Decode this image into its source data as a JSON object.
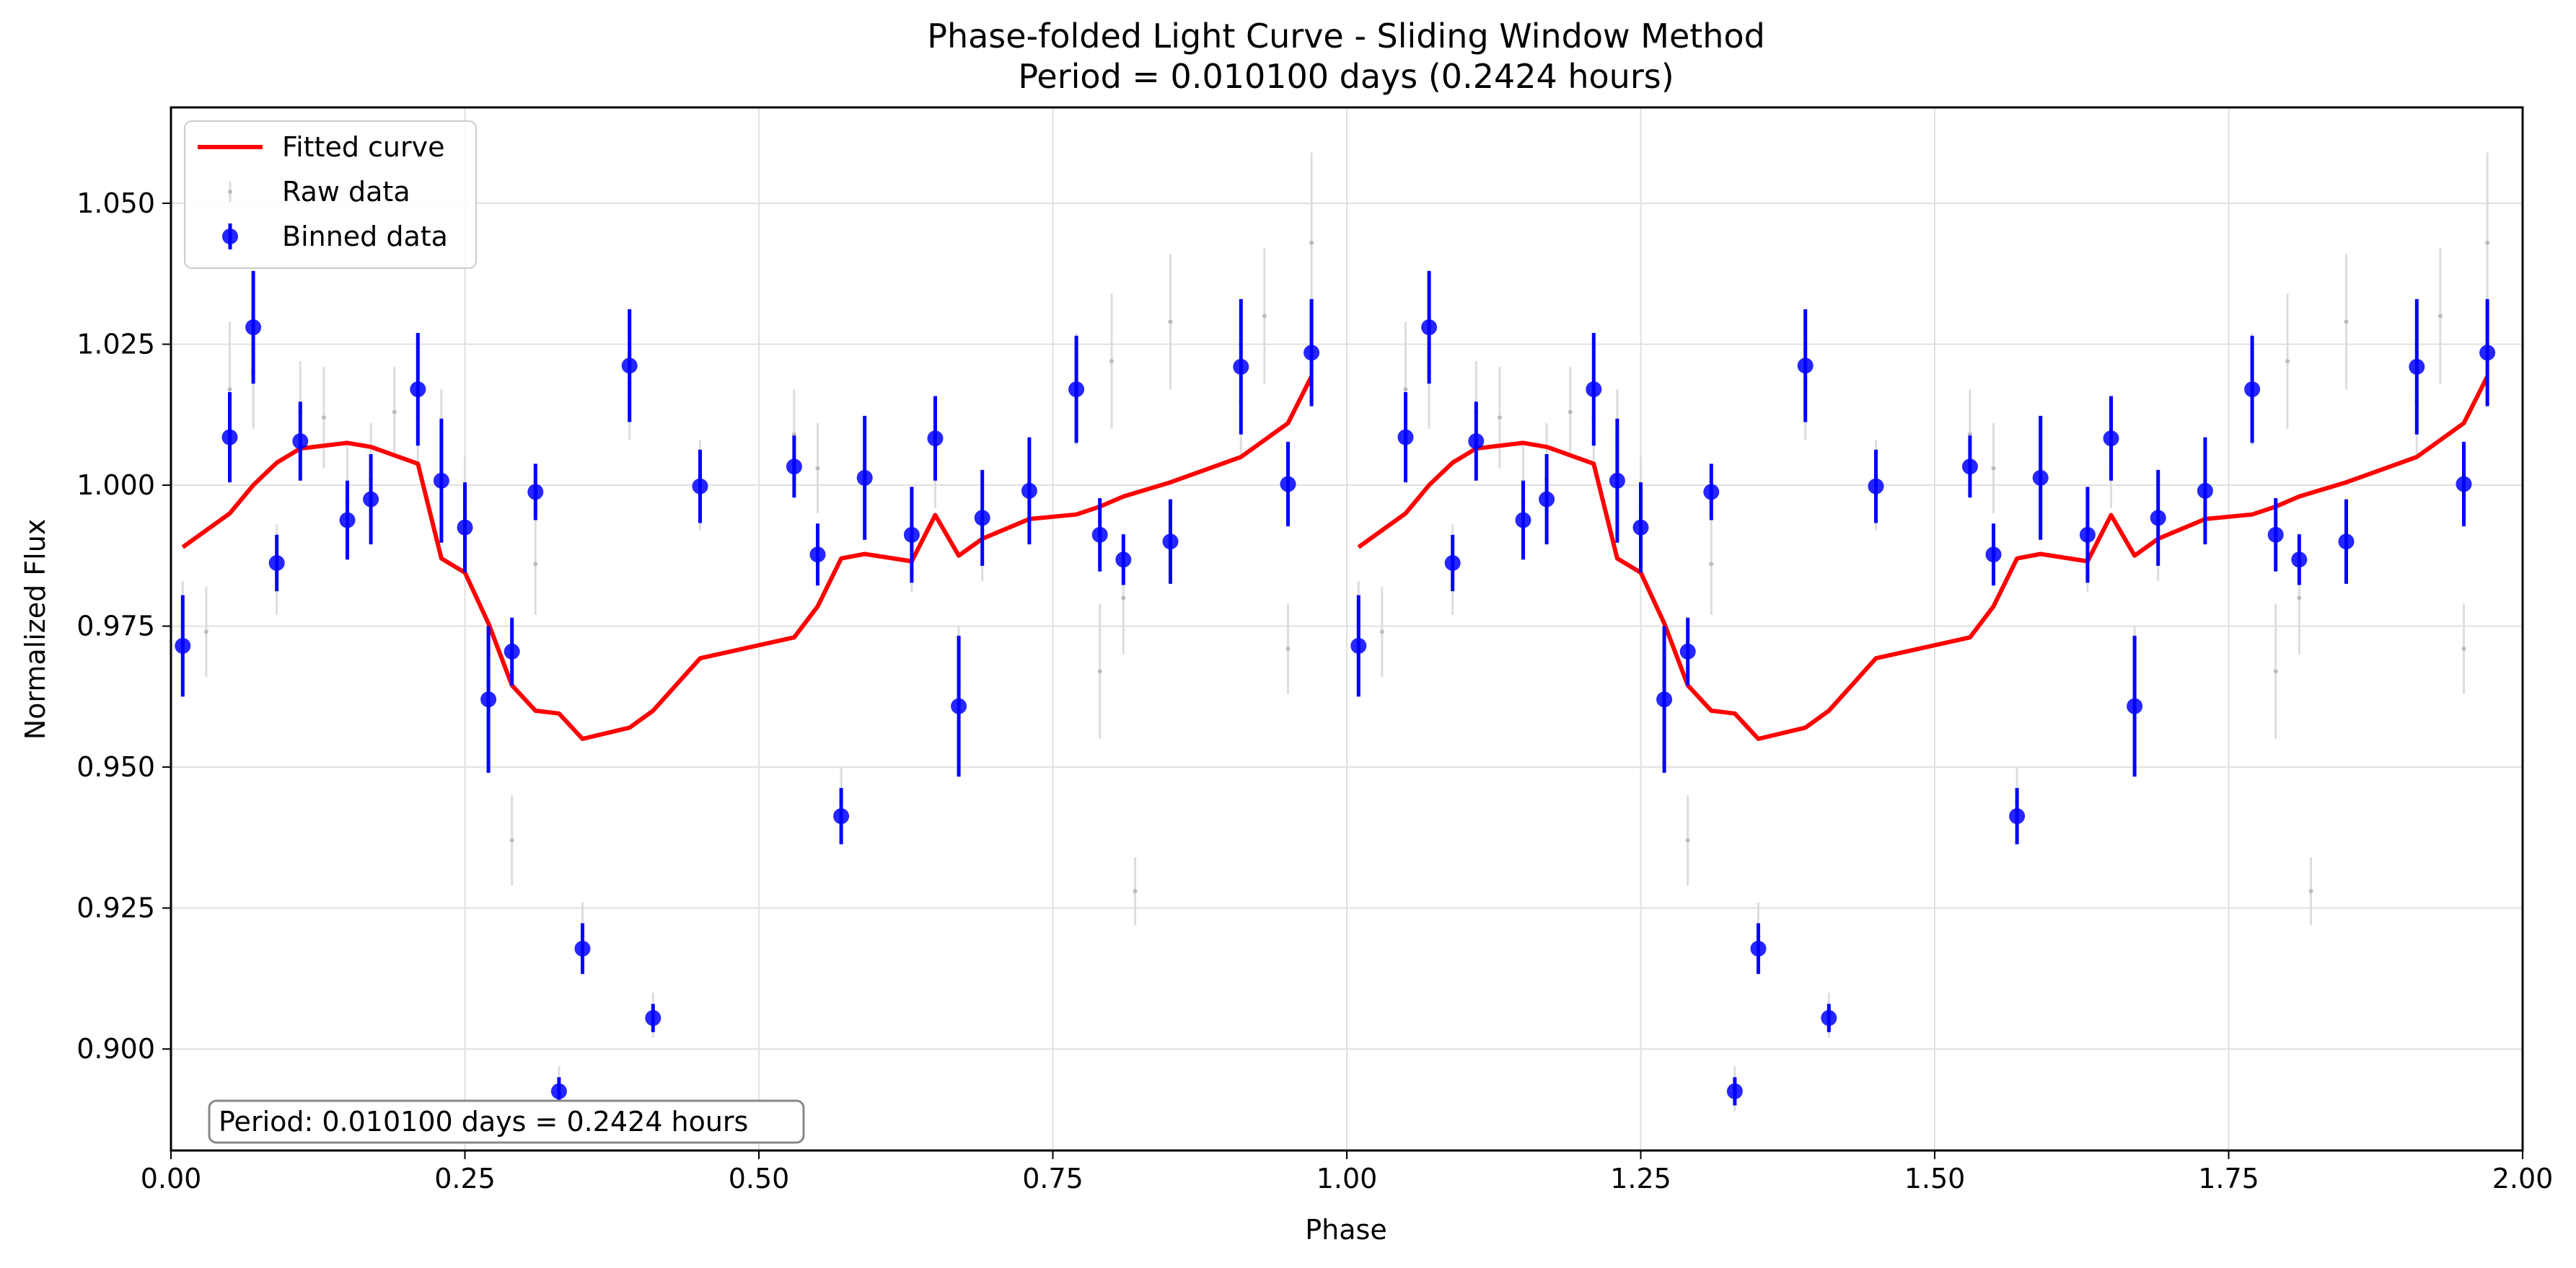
{
  "chart_data": {
    "type": "scatter",
    "title": "Phase-folded Light Curve - Sliding Window Method",
    "subtitle": "Period = 0.010100 days (0.2424 hours)",
    "xlabel": "Phase",
    "ylabel": "Normalized Flux",
    "xlim": [
      0.0,
      2.0
    ],
    "ylim": [
      0.882,
      1.067
    ],
    "grid": true,
    "legend_position": "top-left",
    "x_ticks": [
      "0.00",
      "0.25",
      "0.50",
      "0.75",
      "1.00",
      "1.25",
      "1.50",
      "1.75",
      "2.00"
    ],
    "x_tick_values": [
      0.0,
      0.25,
      0.5,
      0.75,
      1.0,
      1.25,
      1.5,
      1.75,
      2.0
    ],
    "y_ticks": [
      "0.900",
      "0.925",
      "0.950",
      "0.975",
      "1.000",
      "1.025",
      "1.050"
    ],
    "y_tick_values": [
      0.9,
      0.925,
      0.95,
      0.975,
      1.0,
      1.025,
      1.05
    ],
    "annotation": "Period: 0.010100 days = 0.2424 hours",
    "colors": {
      "fitted": "#ff0000",
      "binned": "#0000ff",
      "raw": "#bbbbbb",
      "grid": "#e0e0e0"
    },
    "series": [
      {
        "name": "Fitted curve",
        "kind": "line",
        "x": [
          0.01,
          0.05,
          0.07,
          0.09,
          0.11,
          0.15,
          0.17,
          0.21,
          0.23,
          0.25,
          0.27,
          0.29,
          0.31,
          0.33,
          0.35,
          0.39,
          0.41,
          0.45,
          0.53,
          0.55,
          0.57,
          0.59,
          0.63,
          0.65,
          0.67,
          0.69,
          0.73,
          0.77,
          0.79,
          0.81,
          0.85,
          0.91,
          0.95,
          0.97
        ],
        "y": [
          0.989,
          0.995,
          1.0,
          1.004,
          1.0065,
          1.0075,
          1.0068,
          1.0038,
          0.987,
          0.9845,
          0.9755,
          0.9645,
          0.96,
          0.9595,
          0.955,
          0.957,
          0.96,
          0.9693,
          0.973,
          0.9785,
          0.987,
          0.9878,
          0.9865,
          0.9947,
          0.9875,
          0.9905,
          0.994,
          0.9948,
          0.9962,
          0.998,
          1.0005,
          1.005,
          1.011,
          1.0193
        ]
      },
      {
        "name": "Raw data",
        "kind": "points",
        "x": [
          0.01,
          0.03,
          0.05,
          0.07,
          0.09,
          0.11,
          0.13,
          0.15,
          0.17,
          0.19,
          0.21,
          0.23,
          0.25,
          0.27,
          0.29,
          0.31,
          0.33,
          0.35,
          0.39,
          0.41,
          0.45,
          0.53,
          0.55,
          0.57,
          0.59,
          0.63,
          0.65,
          0.67,
          0.69,
          0.73,
          0.77,
          0.79,
          0.8,
          0.81,
          0.82,
          0.85,
          0.91,
          0.93,
          0.95,
          0.97
        ],
        "y": [
          0.975,
          0.974,
          1.017,
          1.02,
          0.985,
          1.013,
          1.012,
          0.997,
          1.001,
          1.013,
          1.012,
          1.008,
          0.996,
          0.965,
          0.937,
          0.986,
          0.893,
          0.92,
          1.018,
          0.906,
          1.0,
          1.009,
          1.003,
          0.944,
          1.002,
          0.99,
          1.005,
          0.965,
          0.992,
          0.999,
          1.017,
          0.967,
          1.022,
          0.98,
          0.928,
          1.029,
          1.015,
          1.03,
          0.971,
          1.043
        ],
        "yerr": [
          0.008,
          0.008,
          0.012,
          0.01,
          0.008,
          0.009,
          0.009,
          0.01,
          0.01,
          0.008,
          0.008,
          0.009,
          0.009,
          0.01,
          0.008,
          0.009,
          0.004,
          0.006,
          0.01,
          0.004,
          0.008,
          0.008,
          0.008,
          0.006,
          0.009,
          0.009,
          0.009,
          0.01,
          0.009,
          0.009,
          0.01,
          0.012,
          0.012,
          0.01,
          0.006,
          0.012,
          0.01,
          0.012,
          0.008,
          0.016
        ]
      },
      {
        "name": "Binned data",
        "kind": "errorbar",
        "x": [
          0.01,
          0.05,
          0.07,
          0.09,
          0.11,
          0.15,
          0.17,
          0.21,
          0.23,
          0.25,
          0.27,
          0.29,
          0.31,
          0.33,
          0.35,
          0.39,
          0.41,
          0.45,
          0.53,
          0.55,
          0.57,
          0.59,
          0.63,
          0.65,
          0.67,
          0.69,
          0.73,
          0.77,
          0.79,
          0.81,
          0.85,
          0.91,
          0.95,
          0.97
        ],
        "y": [
          0.9715,
          1.0085,
          1.028,
          0.9862,
          1.0078,
          0.9938,
          0.9975,
          1.017,
          1.0008,
          0.9925,
          0.962,
          0.9705,
          0.9988,
          0.8925,
          0.9178,
          1.0212,
          0.9055,
          0.9998,
          1.0033,
          0.9877,
          0.9413,
          1.0013,
          0.9912,
          1.0083,
          0.9608,
          0.9942,
          0.999,
          1.017,
          0.9912,
          0.9868,
          0.99,
          1.021,
          1.0002,
          1.0235
        ],
        "yerr": [
          0.009,
          0.008,
          0.01,
          0.005,
          0.007,
          0.007,
          0.008,
          0.01,
          0.011,
          0.008,
          0.013,
          0.006,
          0.005,
          0.0025,
          0.0045,
          0.01,
          0.0025,
          0.0065,
          0.0055,
          0.0055,
          0.005,
          0.011,
          0.0085,
          0.0075,
          0.0125,
          0.0085,
          0.0095,
          0.0095,
          0.0065,
          0.0045,
          0.0075,
          0.012,
          0.0075,
          0.0095
        ]
      }
    ]
  }
}
